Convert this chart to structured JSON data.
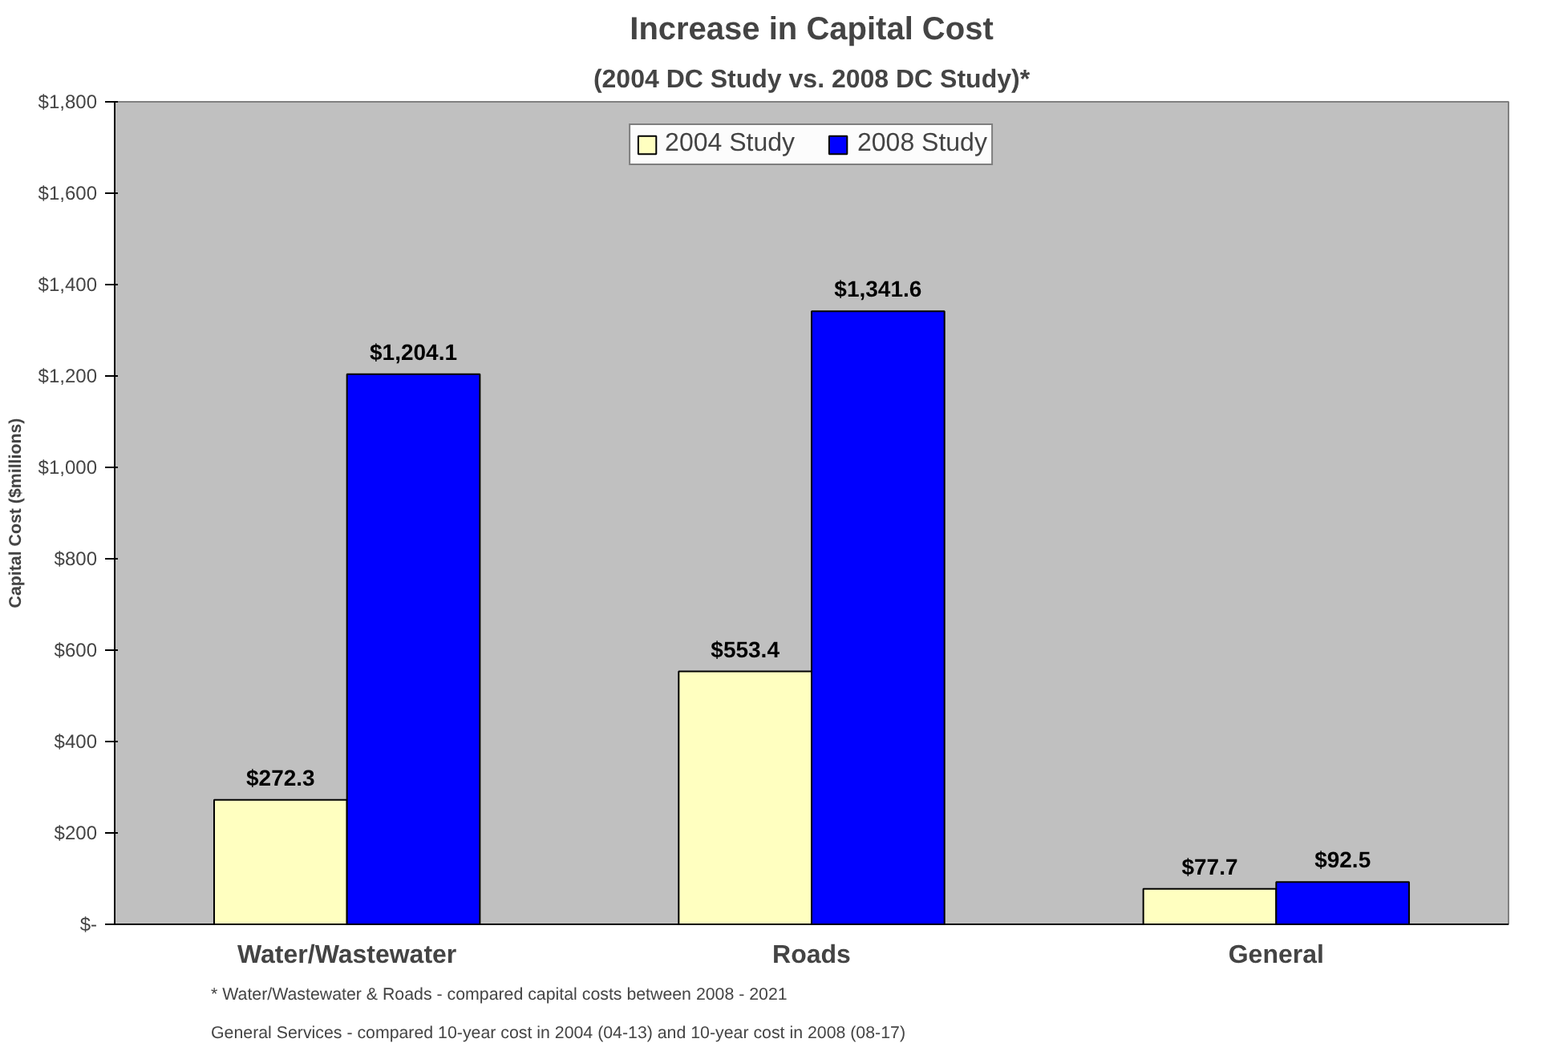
{
  "chart_data": {
    "type": "bar",
    "title": "Increase in Capital Cost",
    "subtitle": "(2004 DC Study vs. 2008 DC Study)*",
    "ylabel": "Capital Cost ($millions)",
    "categories": [
      "Water/Wastewater",
      "Roads",
      "General"
    ],
    "series": [
      {
        "name": "2004 Study",
        "color": "#ffffc0",
        "values": [
          272.3,
          553.4,
          77.7
        ],
        "value_labels": [
          "$272.3",
          "$553.4",
          "$77.7"
        ]
      },
      {
        "name": "2008 Study",
        "color": "#0000ff",
        "values": [
          1204.1,
          1341.6,
          92.5
        ],
        "value_labels": [
          "$1,204.1",
          "$1,341.6",
          "$92.5"
        ]
      }
    ],
    "ylim": [
      0,
      1800
    ],
    "yticks": [
      {
        "value": 0,
        "label": "$-"
      },
      {
        "value": 200,
        "label": "$200"
      },
      {
        "value": 400,
        "label": "$400"
      },
      {
        "value": 600,
        "label": "$600"
      },
      {
        "value": 800,
        "label": "$800"
      },
      {
        "value": 1000,
        "label": "$1,000"
      },
      {
        "value": 1200,
        "label": "$1,200"
      },
      {
        "value": 1400,
        "label": "$1,400"
      },
      {
        "value": 1600,
        "label": "$1,600"
      },
      {
        "value": 1800,
        "label": "$1,800"
      }
    ],
    "grid": false,
    "legend": "top",
    "annotations": [
      "* Water/Wastewater & Roads - compared capital costs between 2008 - 2021",
      "General Services - compared 10-year cost in 2004 (04-13) and 10-year cost in 2008 (08-17)"
    ]
  }
}
